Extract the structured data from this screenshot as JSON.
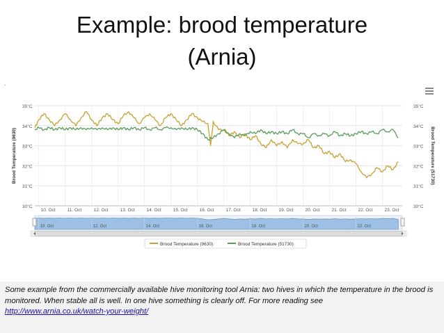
{
  "slide": {
    "title_line1": "Example: brood temperature",
    "title_line2": "(Arnia)",
    "caption": "Some example from the commercially available hive monitoring tool Arnia: two hives in which the temperature in the brood is monitored. When stable all is well. In one hive something is clearly off. For more reading see",
    "link": "http://www.arnia.co.uk/watch-your-weight/",
    "stray_mark": "·",
    "menu_icon": "menu-icon"
  },
  "chart_data": {
    "type": "line",
    "ylabel_left": "Brood Temperature (9630)",
    "ylabel_right": "Brood Temperature (51730)",
    "ylim": [
      30,
      35
    ],
    "yticks": [
      "35°C",
      "34°C",
      "33°C",
      "32°C",
      "31°C",
      "30°C"
    ],
    "xlim": [
      9.85,
      23.75
    ],
    "xticks": [
      {
        "x": 10,
        "label": "10. Oct"
      },
      {
        "x": 11,
        "label": "11. Oct"
      },
      {
        "x": 12,
        "label": "12. Oct"
      },
      {
        "x": 13,
        "label": "13. Oct"
      },
      {
        "x": 14,
        "label": "14. Oct"
      },
      {
        "x": 15,
        "label": "15. Oct"
      },
      {
        "x": 16,
        "label": "16. Oct"
      },
      {
        "x": 17,
        "label": "17. Oct"
      },
      {
        "x": 18,
        "label": "18. Oct"
      },
      {
        "x": 19,
        "label": "19. Oct"
      },
      {
        "x": 20,
        "label": "20. Oct"
      },
      {
        "x": 21,
        "label": "21. Oct"
      },
      {
        "x": 22,
        "label": "22. Oct"
      },
      {
        "x": 23,
        "label": "23. Oct"
      }
    ],
    "navigator_labels": [
      {
        "x": 10,
        "label": "10. Oct"
      },
      {
        "x": 12,
        "label": "12. Oct"
      },
      {
        "x": 14,
        "label": "14. Oct"
      },
      {
        "x": 16,
        "label": "16. Oct"
      },
      {
        "x": 18,
        "label": "18. Oct"
      },
      {
        "x": 20,
        "label": "20. Oct"
      },
      {
        "x": 22,
        "label": "22. Oct"
      }
    ],
    "grid": true,
    "legend_position": "bottom",
    "series": [
      {
        "name": "Brood Temperature (9630)",
        "color": "#c8a030",
        "points": [
          [
            9.85,
            33.9
          ],
          [
            10.0,
            34.3
          ],
          [
            10.2,
            34.6
          ],
          [
            10.4,
            34.3
          ],
          [
            10.6,
            34.0
          ],
          [
            10.8,
            34.3
          ],
          [
            11.0,
            34.6
          ],
          [
            11.2,
            34.3
          ],
          [
            11.4,
            34.0
          ],
          [
            11.6,
            34.4
          ],
          [
            11.8,
            34.7
          ],
          [
            12.0,
            34.3
          ],
          [
            12.2,
            34.0
          ],
          [
            12.4,
            34.4
          ],
          [
            12.6,
            34.6
          ],
          [
            12.8,
            34.3
          ],
          [
            13.0,
            34.1
          ],
          [
            13.2,
            34.5
          ],
          [
            13.4,
            34.7
          ],
          [
            13.6,
            34.4
          ],
          [
            13.8,
            34.1
          ],
          [
            14.0,
            34.4
          ],
          [
            14.2,
            34.6
          ],
          [
            14.4,
            34.3
          ],
          [
            14.6,
            34.0
          ],
          [
            14.8,
            34.4
          ],
          [
            15.0,
            34.6
          ],
          [
            15.2,
            34.3
          ],
          [
            15.4,
            34.0
          ],
          [
            15.6,
            34.3
          ],
          [
            15.8,
            34.6
          ],
          [
            16.0,
            34.4
          ],
          [
            16.2,
            34.2
          ],
          [
            16.4,
            34.1
          ],
          [
            16.5,
            33.0
          ],
          [
            16.6,
            34.2
          ],
          [
            16.8,
            33.8
          ],
          [
            17.0,
            33.8
          ],
          [
            17.2,
            33.5
          ],
          [
            17.4,
            33.7
          ],
          [
            17.6,
            33.4
          ],
          [
            17.8,
            33.6
          ],
          [
            18.0,
            33.3
          ],
          [
            18.2,
            33.5
          ],
          [
            18.4,
            33.1
          ],
          [
            18.6,
            32.9
          ],
          [
            18.8,
            33.3
          ],
          [
            19.0,
            33.0
          ],
          [
            19.2,
            33.2
          ],
          [
            19.4,
            32.9
          ],
          [
            19.6,
            33.3
          ],
          [
            19.8,
            33.1
          ],
          [
            20.0,
            33.1
          ],
          [
            20.2,
            33.3
          ],
          [
            20.4,
            32.9
          ],
          [
            20.6,
            33.0
          ],
          [
            20.8,
            32.6
          ],
          [
            21.0,
            32.7
          ],
          [
            21.2,
            32.4
          ],
          [
            21.4,
            32.6
          ],
          [
            21.6,
            32.2
          ],
          [
            21.8,
            32.3
          ],
          [
            22.0,
            32.1
          ],
          [
            22.2,
            31.7
          ],
          [
            22.4,
            31.4
          ],
          [
            22.6,
            31.6
          ],
          [
            22.8,
            31.9
          ],
          [
            23.0,
            31.7
          ],
          [
            23.2,
            32.0
          ],
          [
            23.4,
            31.8
          ],
          [
            23.6,
            32.2
          ]
        ]
      },
      {
        "name": "Brood Temperature (51730)",
        "color": "#5a9a5a",
        "points": [
          [
            9.85,
            33.8
          ],
          [
            10.0,
            33.9
          ],
          [
            10.2,
            33.8
          ],
          [
            10.4,
            33.9
          ],
          [
            10.6,
            33.8
          ],
          [
            10.8,
            33.9
          ],
          [
            11.0,
            33.8
          ],
          [
            11.2,
            33.9
          ],
          [
            11.4,
            33.8
          ],
          [
            11.6,
            33.9
          ],
          [
            11.8,
            33.8
          ],
          [
            12.0,
            33.9
          ],
          [
            12.2,
            33.8
          ],
          [
            12.4,
            33.9
          ],
          [
            12.6,
            33.8
          ],
          [
            12.8,
            33.9
          ],
          [
            13.0,
            33.8
          ],
          [
            13.2,
            33.9
          ],
          [
            13.4,
            33.8
          ],
          [
            13.6,
            33.9
          ],
          [
            13.8,
            33.8
          ],
          [
            14.0,
            33.9
          ],
          [
            14.2,
            33.8
          ],
          [
            14.4,
            33.9
          ],
          [
            14.6,
            33.8
          ],
          [
            14.8,
            33.9
          ],
          [
            15.0,
            33.9
          ],
          [
            15.2,
            33.8
          ],
          [
            15.4,
            33.9
          ],
          [
            15.6,
            33.8
          ],
          [
            15.8,
            33.9
          ],
          [
            16.0,
            33.8
          ],
          [
            16.2,
            33.6
          ],
          [
            16.4,
            33.3
          ],
          [
            16.6,
            33.4
          ],
          [
            16.8,
            33.6
          ],
          [
            17.0,
            33.8
          ],
          [
            17.2,
            33.6
          ],
          [
            17.4,
            33.4
          ],
          [
            17.6,
            33.6
          ],
          [
            17.8,
            33.5
          ],
          [
            18.0,
            33.7
          ],
          [
            18.2,
            33.6
          ],
          [
            18.4,
            33.8
          ],
          [
            18.6,
            33.6
          ],
          [
            18.8,
            33.7
          ],
          [
            19.0,
            33.6
          ],
          [
            19.2,
            33.7
          ],
          [
            19.4,
            33.6
          ],
          [
            19.6,
            33.8
          ],
          [
            19.8,
            33.6
          ],
          [
            20.0,
            33.6
          ],
          [
            20.2,
            33.4
          ],
          [
            20.4,
            33.6
          ],
          [
            20.6,
            33.5
          ],
          [
            20.8,
            33.6
          ],
          [
            21.0,
            33.5
          ],
          [
            21.2,
            33.7
          ],
          [
            21.4,
            33.5
          ],
          [
            21.6,
            33.6
          ],
          [
            21.8,
            33.5
          ],
          [
            22.0,
            33.6
          ],
          [
            22.2,
            33.7
          ],
          [
            22.4,
            33.6
          ],
          [
            22.6,
            33.7
          ],
          [
            22.8,
            33.6
          ],
          [
            23.0,
            33.8
          ],
          [
            23.2,
            33.7
          ],
          [
            23.4,
            33.8
          ],
          [
            23.6,
            33.4
          ]
        ]
      }
    ]
  }
}
